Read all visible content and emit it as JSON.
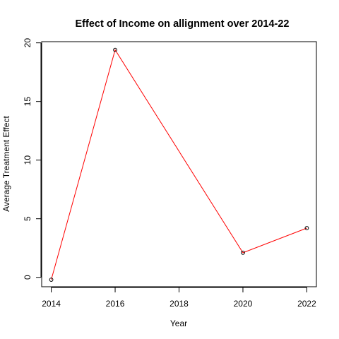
{
  "chart_data": {
    "type": "line",
    "title": "Effect of Income on allignment over 2014-22",
    "xlabel": "Year",
    "ylabel": "Average Treatment Effect",
    "x": [
      2014,
      2016,
      2020,
      2022
    ],
    "series": [
      {
        "values": [
          -0.2,
          19.4,
          2.1,
          4.2
        ],
        "color": "#ff0000"
      }
    ],
    "xlim": [
      2013.7,
      2022.3
    ],
    "ylim": [
      -0.8,
      20.1
    ],
    "xticks": [
      2014,
      2016,
      2018,
      2020,
      2022
    ],
    "xtick_labels": [
      "2014",
      "2016",
      "2018",
      "2020",
      "2022"
    ],
    "yticks": [
      0,
      5,
      10,
      15,
      20
    ],
    "ytick_labels": [
      "0",
      "5",
      "10",
      "15",
      "20"
    ],
    "grid": false,
    "legend": false,
    "markers": "open-circle"
  }
}
